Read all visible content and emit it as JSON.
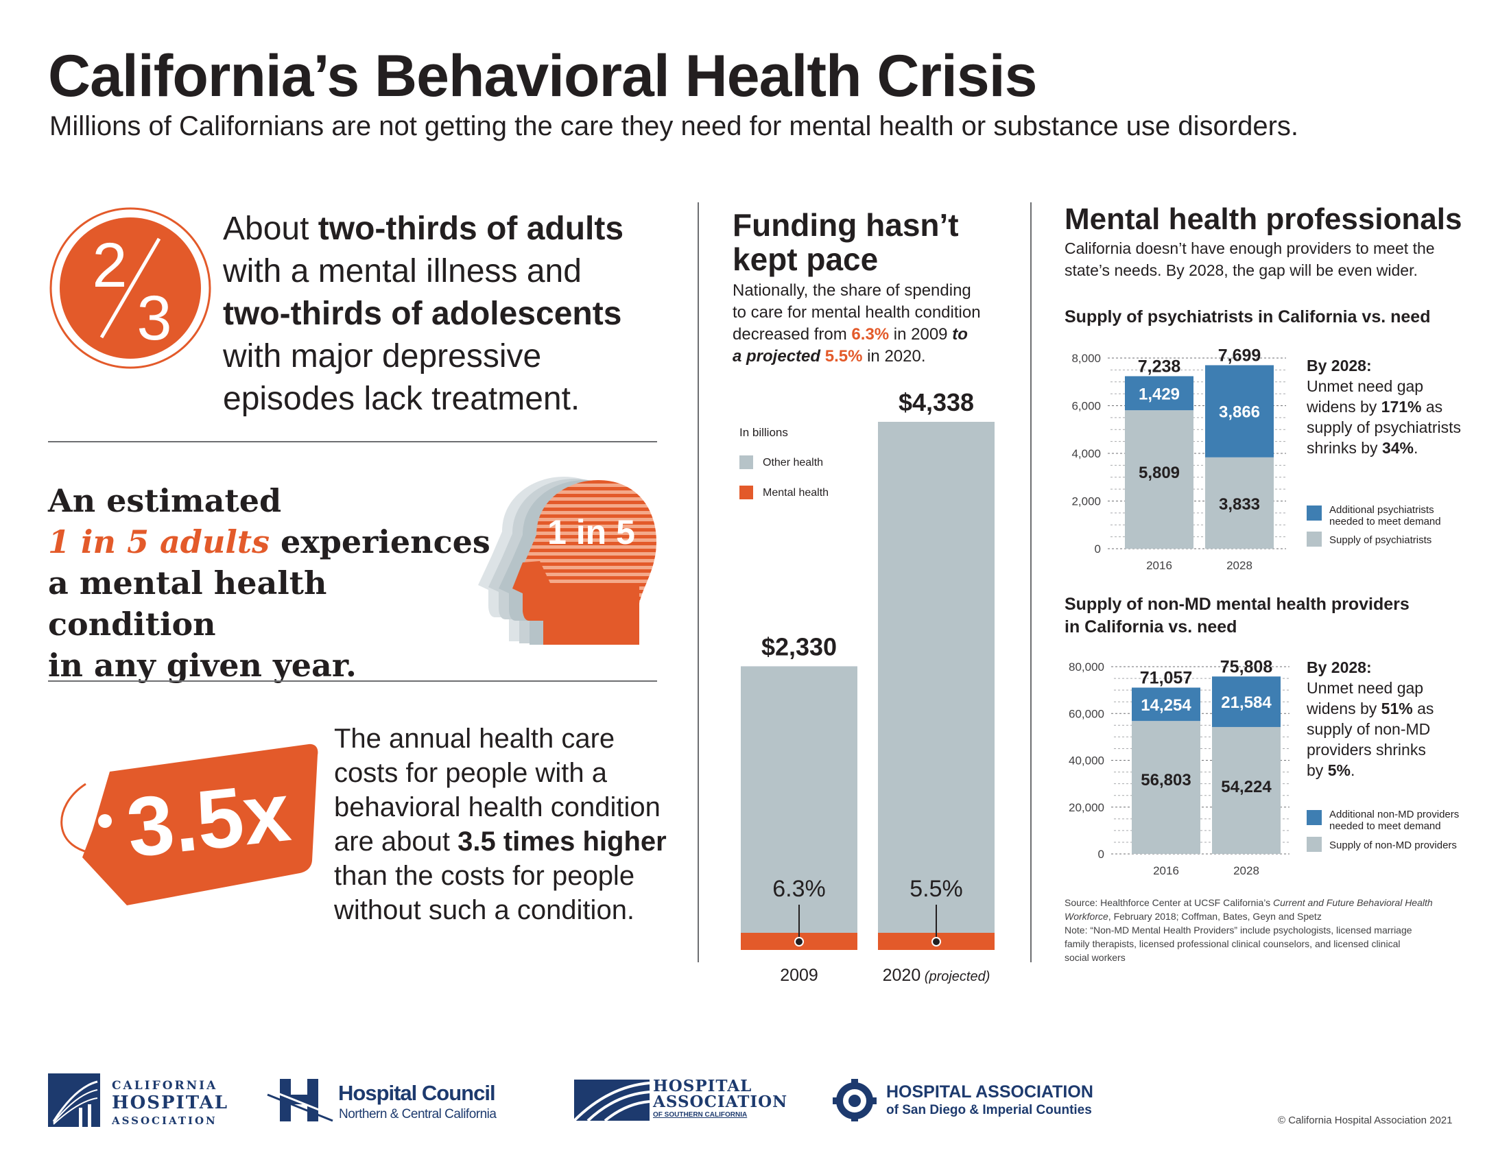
{
  "header": {
    "title": "California’s Behavioral Health Crisis",
    "subtitle": "Millions of Californians are not getting the care they need for mental health or substance use disorders."
  },
  "stat1": {
    "fraction_numerator": "2",
    "fraction_denominator": "3",
    "t1": "About ",
    "t2": "two-thirds of adults",
    "t3": "with a mental illness and",
    "t4": "two-thirds of adolescents",
    "t5": "with major depressive",
    "t6": "episodes lack treatment."
  },
  "stat2": {
    "l1": "An estimated",
    "l2": "1 in 5 adults",
    "l2b": " experiences",
    "l3": "a mental health condition",
    "l4": "in any given year.",
    "badge": "1 in 5"
  },
  "stat3": {
    "tag": "3.5x",
    "l1": "The annual health care",
    "l2": "costs for people with a",
    "l3": "behavioral health condition",
    "l4a": "are about ",
    "l4b": "3.5 times higher",
    "l5": "than the costs for people",
    "l6": "without such a condition."
  },
  "funding": {
    "heading1": "Funding hasn’t",
    "heading2": "kept pace",
    "desc1": "Nationally, the share of spending",
    "desc2": "to care for mental health condition",
    "desc3a": "decreased from ",
    "desc3b": "6.3%",
    "desc3c": " in 2009 ",
    "desc3d": "to",
    "desc4a": "a projected ",
    "desc4b": "5.5%",
    "desc4c": " in 2020.",
    "legend_title": "In billions",
    "legend_other": "Other health",
    "legend_mental": "Mental health",
    "colors": {
      "other": "#b6c3c8",
      "mental": "#e35a2a"
    }
  },
  "mhp": {
    "heading": "Mental health professionals",
    "desc1": "California doesn’t have enough providers to meet the",
    "desc2": "state’s needs. By 2028, the gap will be even wider.",
    "psych_title": "Supply of psychiatrists in California vs. need",
    "psych_note_head": "By 2028:",
    "psych_note1": "Unmet need gap",
    "psych_note2a": "widens by ",
    "psych_note2b": "171%",
    "psych_note2c": " as",
    "psych_note3": "supply of psychiatrists",
    "psych_note4a": "shrinks by ",
    "psych_note4b": "34%",
    "psych_note4c": ".",
    "psych_leg1a": "Additional psychiatrists",
    "psych_leg1b": "needed to meet demand",
    "psych_leg2": "Supply of psychiatrists",
    "nonmd_title1": "Supply of non-MD mental health providers",
    "nonmd_title2": "in California vs. need",
    "nonmd_note_head": "By 2028:",
    "nonmd_note1": "Unmet need gap",
    "nonmd_note2a": "widens by ",
    "nonmd_note2b": "51%",
    "nonmd_note2c": " as",
    "nonmd_note3": "supply of non-MD",
    "nonmd_note4": "providers shrinks",
    "nonmd_note5a": "by ",
    "nonmd_note5b": "5%",
    "nonmd_note5c": ".",
    "nonmd_leg1a": "Additional non-MD providers",
    "nonmd_leg1b": "needed to meet demand",
    "nonmd_leg2": "Supply of non-MD providers",
    "colors": {
      "supply": "#b6c3c8",
      "gap": "#3e7eb2"
    },
    "source1a": "Source: Healthforce Center at UCSF California’s ",
    "source1b": "Current and Future Behavioral Health",
    "source2a": "Workforce",
    "source2b": ", February 2018; Coffman, Bates, Geyn and Spetz",
    "note1": "Note: “Non-MD Mental Health Providers” include psychologists, licensed marriage",
    "note2": "family therapists, licensed professional clinical counselors, and licensed clinical",
    "note3": "social workers"
  },
  "chart_data": [
    {
      "type": "bar",
      "categories": [
        "2009",
        "2020"
      ],
      "category_suffix": [
        "",
        "(projected)"
      ],
      "series": [
        {
          "name": "Other health",
          "values": [
            2183,
            4099
          ]
        },
        {
          "name": "Mental health",
          "values": [
            147,
            239
          ]
        }
      ],
      "totals": [
        2330,
        4338
      ],
      "total_labels": [
        "$2,330",
        "$4,338"
      ],
      "share_labels": [
        "6.3%",
        "5.5%"
      ],
      "ylabel": "In billions",
      "stacked": true
    },
    {
      "type": "bar",
      "title": "Supply of psychiatrists in California vs. need",
      "categories": [
        "2016",
        "2028"
      ],
      "series": [
        {
          "name": "Supply of psychiatrists",
          "values": [
            5809,
            3833
          ],
          "labels": [
            "5,809",
            "3,833"
          ]
        },
        {
          "name": "Additional psychiatrists needed to meet demand",
          "values": [
            1429,
            3866
          ],
          "labels": [
            "1,429",
            "3,866"
          ]
        }
      ],
      "totals": [
        7238,
        7699
      ],
      "total_labels": [
        "7,238",
        "7,699"
      ],
      "ylim": [
        0,
        8000
      ],
      "yticks": [
        0,
        2000,
        4000,
        6000,
        8000
      ],
      "ytick_labels": [
        "0",
        "2,000",
        "4,000",
        "6,000",
        "8,000"
      ],
      "stacked": true
    },
    {
      "type": "bar",
      "title": "Supply of non-MD mental health providers in California vs. need",
      "categories": [
        "2016",
        "2028"
      ],
      "series": [
        {
          "name": "Supply of non-MD providers",
          "values": [
            56803,
            54224
          ],
          "labels": [
            "56,803",
            "54,224"
          ]
        },
        {
          "name": "Additional non-MD providers needed to meet demand",
          "values": [
            14254,
            21584
          ],
          "labels": [
            "14,254",
            "21,584"
          ]
        }
      ],
      "totals": [
        71057,
        75808
      ],
      "total_labels": [
        "71,057",
        "75,808"
      ],
      "ylim": [
        0,
        80000
      ],
      "yticks": [
        0,
        20000,
        40000,
        60000,
        80000
      ],
      "ytick_labels": [
        "0",
        "20,000",
        "40,000",
        "60,000",
        "80,000"
      ],
      "stacked": true
    }
  ],
  "footer": {
    "logo1_a": "CALIFORNIA",
    "logo1_b": "HOSPITAL",
    "logo1_c": "ASSOCIATION",
    "logo2_a": "Hospital Council",
    "logo2_b": "Northern & Central California",
    "logo3_a": "HOSPITAL",
    "logo3_b": "ASSOCIATION",
    "logo3_c": "OF SOUTHERN CALIFORNIA",
    "logo4_a": "HOSPITAL ASSOCIATION",
    "logo4_b": "of San Diego & Imperial Counties",
    "copyright": "© California Hospital Association 2021"
  }
}
